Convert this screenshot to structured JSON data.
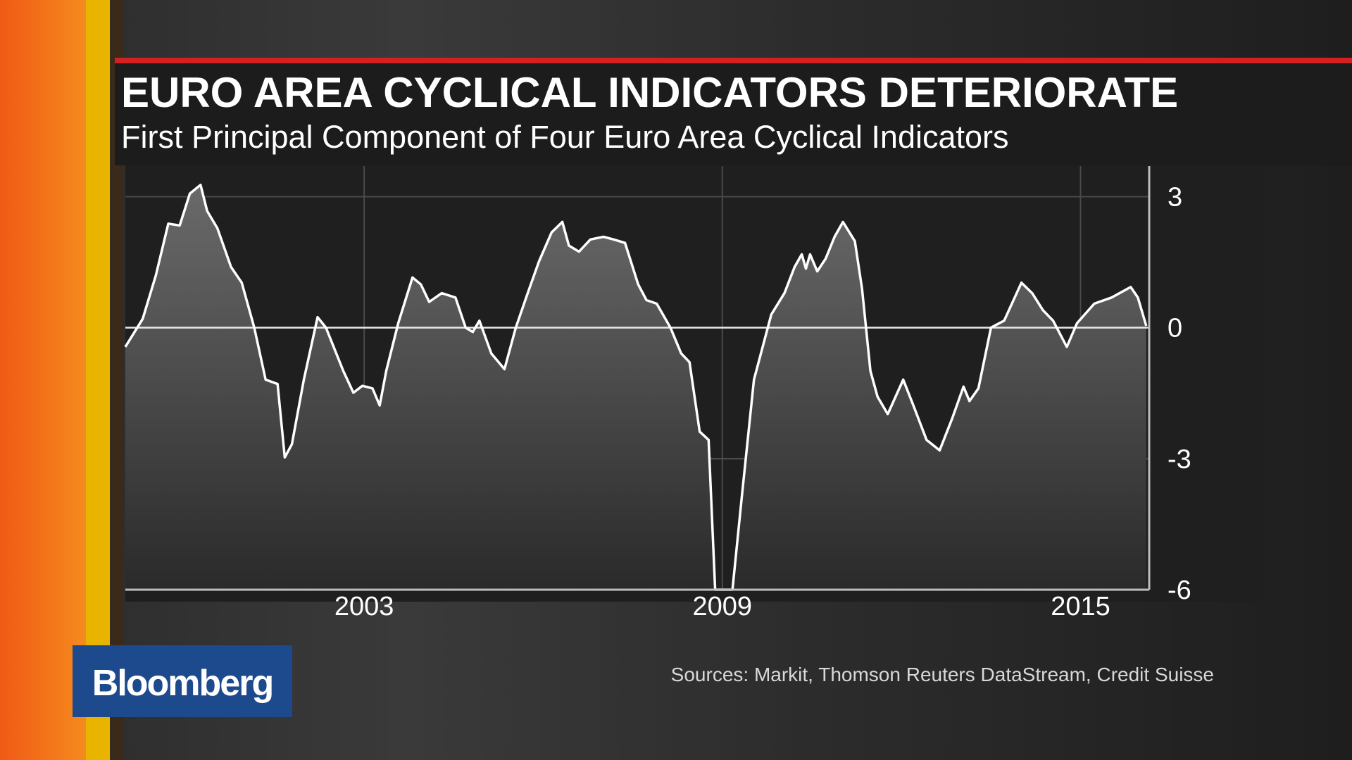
{
  "brand": "Bloomberg",
  "chart_data": {
    "type": "line",
    "title": "EURO AREA CYCLICAL INDICATORS DETERIORATE",
    "subtitle": "First Principal Component of Four Euro Area Cyclical Indicators",
    "source": "Sources: Markit, Thomson Reuters DataStream, Credit Suisse",
    "x": [
      1999.0,
      1999.29,
      1999.51,
      1999.72,
      1999.91,
      2000.08,
      2000.26,
      2000.37,
      2000.54,
      2000.77,
      2000.95,
      2001.16,
      2001.35,
      2001.55,
      2001.67,
      2001.79,
      2001.99,
      2002.22,
      2002.36,
      2002.65,
      2002.82,
      2002.97,
      2003.14,
      2003.26,
      2003.37,
      2003.57,
      2003.81,
      2003.95,
      2004.09,
      2004.3,
      2004.53,
      2004.7,
      2004.82,
      2004.93,
      2005.13,
      2005.35,
      2005.54,
      2005.74,
      2005.93,
      2006.14,
      2006.32,
      2006.43,
      2006.6,
      2006.79,
      2007.01,
      2007.18,
      2007.37,
      2007.59,
      2007.73,
      2007.9,
      2008.13,
      2008.31,
      2008.45,
      2008.62,
      2008.77,
      2008.88,
      2009.17,
      2009.32,
      2009.53,
      2009.82,
      2010.04,
      2010.21,
      2010.33,
      2010.4,
      2010.47,
      2010.59,
      2010.73,
      2010.88,
      2011.02,
      2011.22,
      2011.34,
      2011.48,
      2011.6,
      2011.77,
      2012.03,
      2012.2,
      2012.42,
      2012.64,
      2012.85,
      2013.04,
      2013.14,
      2013.29,
      2013.5,
      2013.72,
      2014.01,
      2014.19,
      2014.37,
      2014.54,
      2014.77,
      2014.94,
      2015.23,
      2015.52,
      2015.84,
      2015.96,
      2016.1
    ],
    "series": [
      {
        "color": "#ffffff",
        "values": [
          -0.44,
          0.2,
          1.19,
          2.38,
          2.34,
          3.07,
          3.27,
          2.67,
          2.28,
          1.39,
          1.03,
          0,
          -1.19,
          -1.29,
          -2.97,
          -2.67,
          -1.19,
          0.24,
          0,
          -0.99,
          -1.49,
          -1.33,
          -1.39,
          -1.78,
          -0.99,
          0.1,
          1.15,
          0.99,
          0.59,
          0.79,
          0.69,
          0,
          -0.1,
          0.16,
          -0.59,
          -0.95,
          0,
          0.79,
          1.52,
          2.18,
          2.42,
          1.88,
          1.74,
          2.02,
          2.08,
          2.02,
          1.94,
          0.99,
          0.63,
          0.55,
          0,
          -0.59,
          -0.79,
          -2.38,
          -2.57,
          -6,
          -6,
          -3.96,
          -1.19,
          0.3,
          0.79,
          1.39,
          1.68,
          1.35,
          1.68,
          1.29,
          1.58,
          2.08,
          2.42,
          1.98,
          0.89,
          -0.99,
          -1.58,
          -1.98,
          -1.19,
          -1.78,
          -2.57,
          -2.81,
          -2.08,
          -1.35,
          -1.68,
          -1.39,
          0,
          0.16,
          1.03,
          0.79,
          0.4,
          0.16,
          -0.44,
          0.1,
          0.55,
          0.69,
          0.93,
          0.69,
          0.04
        ]
      }
    ],
    "xlim": [
      1999,
      2016.15
    ],
    "xticks": [
      2003,
      2009,
      2015
    ],
    "ylim": [
      -6,
      3.7
    ],
    "yticks": [
      3,
      0,
      -3,
      -6
    ],
    "grid": true
  }
}
